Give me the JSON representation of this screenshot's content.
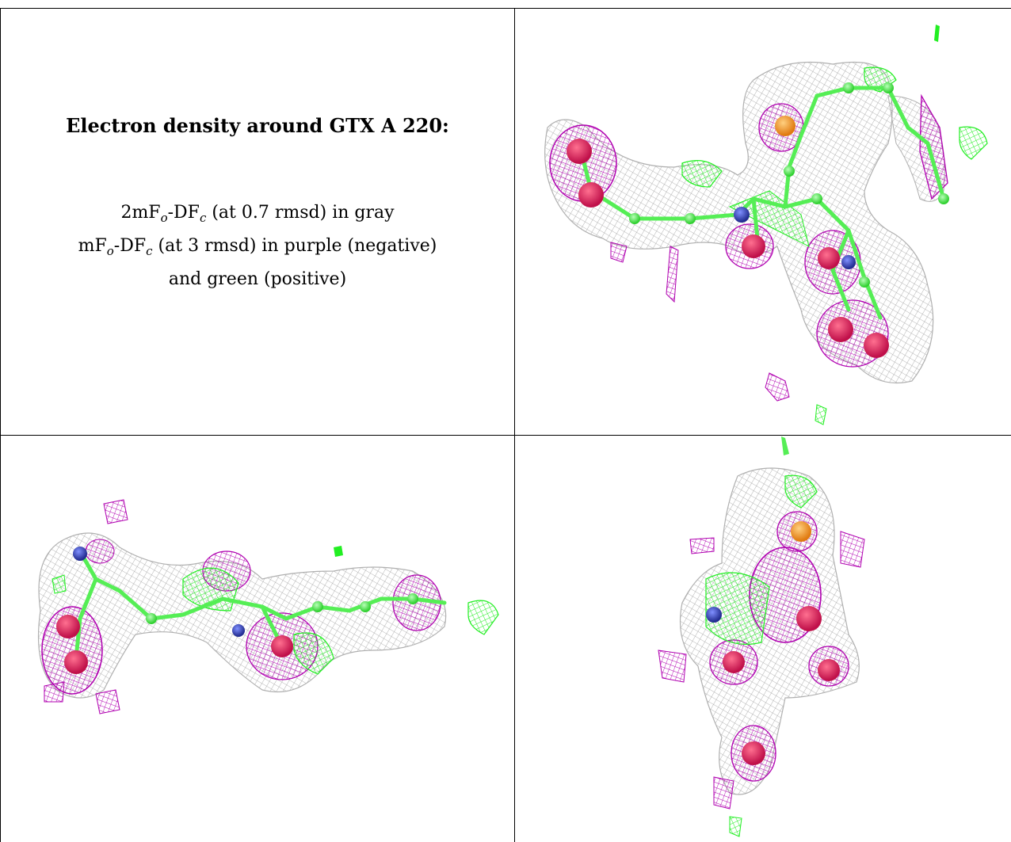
{
  "caption": {
    "title": "Electron density around GTX A 220:",
    "line1_prefix": "2mF",
    "line1_sub1": "o",
    "line1_mid": "-DF",
    "line1_sub2": "c",
    "line1_suffix": " (at 0.7 rmsd) in gray",
    "line2_prefix": "mF",
    "line2_sub1": "o",
    "line2_mid": "-DF",
    "line2_sub2": "c",
    "line2_suffix": " (at 3 rmsd) in purple (negative)",
    "line3": "and green (positive)"
  },
  "colors": {
    "gray_mesh": "#9a9a9a",
    "purple_mesh": "#b000b0",
    "green_mesh": "#22ee22",
    "green_atom": "#55ff55",
    "blue_atom": "#3344bb",
    "red_atom": "#e0205a",
    "orange_atom": "#f2a030"
  },
  "panels": [
    {
      "name": "top-right-view"
    },
    {
      "name": "bottom-left-view"
    },
    {
      "name": "bottom-right-view"
    }
  ]
}
